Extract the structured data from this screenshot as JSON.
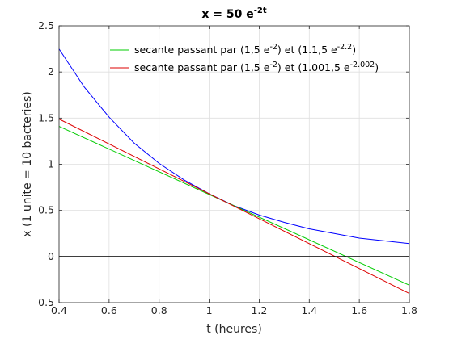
{
  "chart_data": {
    "type": "line",
    "title": {
      "base": "x = 50 e",
      "sup": "-2t"
    },
    "xlabel": "t (heures)",
    "ylabel": "x (1 unite = 10 bacteries)",
    "xlim": [
      0.4,
      1.8
    ],
    "ylim": [
      -0.5,
      2.5
    ],
    "xticks": [
      "0.4",
      "0.6",
      "0.8",
      "1",
      "1.2",
      "1.4",
      "1.6",
      "1.8"
    ],
    "yticks": [
      "-0.5",
      "0",
      "0.5",
      "1",
      "1.5",
      "2",
      "2.5"
    ],
    "grid": true,
    "legend_position": "top-right",
    "series": [
      {
        "color": "#0000ff",
        "x": [
          0.4,
          0.5,
          0.6,
          0.7,
          0.8,
          0.9,
          1.0,
          1.1,
          1.2,
          1.3,
          1.4,
          1.5,
          1.6,
          1.7,
          1.8
        ],
        "y": [
          2.25,
          1.84,
          1.51,
          1.23,
          1.01,
          0.83,
          0.68,
          0.55,
          0.45,
          0.37,
          0.3,
          0.25,
          0.2,
          0.17,
          0.14
        ]
      },
      {
        "name": {
          "parts": [
            "secante passant par (1,5 e",
            "-2",
            ") et (1.1,5 e",
            "-2.2",
            ")"
          ]
        },
        "color": "#00cc00",
        "x": [
          0.4,
          1.8
        ],
        "y": [
          1.41,
          -0.31
        ]
      },
      {
        "name": {
          "parts": [
            "secante passant par (1,5 e",
            "-2",
            ") et (1.001,5 e",
            "-2.002",
            ")"
          ]
        },
        "color": "#dd0000",
        "x": [
          0.4,
          1.8
        ],
        "y": [
          1.49,
          -0.4
        ]
      },
      {
        "color": "#000000",
        "x": [
          0.4,
          1.8
        ],
        "y": [
          0,
          0
        ]
      }
    ]
  }
}
